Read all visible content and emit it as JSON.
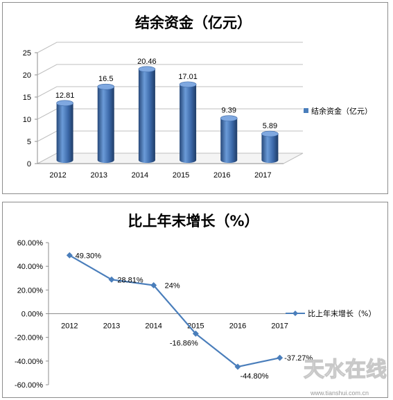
{
  "watermark": {
    "site": "www.tianshui.com.cn",
    "logo_text": "天水在线"
  },
  "chart_data": [
    {
      "type": "bar",
      "title": "结余资金（亿元）",
      "categories": [
        "2012",
        "2013",
        "2014",
        "2015",
        "2016",
        "2017"
      ],
      "series": [
        {
          "name": "结余资金（亿元）",
          "values": [
            12.81,
            16.5,
            20.46,
            17.01,
            9.39,
            5.89
          ]
        }
      ],
      "data_labels": [
        "12.81",
        "16.5",
        "20.46",
        "17.01",
        "9.39",
        "5.89"
      ],
      "y_ticks": [
        "0",
        "5",
        "10",
        "15",
        "20",
        "25"
      ],
      "ylim": [
        0,
        25
      ],
      "grid": true,
      "legend_position": "right",
      "bar_color": "#4a7ebb"
    },
    {
      "type": "line",
      "title": "比上年末增长（%）",
      "categories": [
        "2012",
        "2013",
        "2014",
        "2015",
        "2016",
        "2017"
      ],
      "series": [
        {
          "name": "比上年末增长（%）",
          "values": [
            49.3,
            28.81,
            24,
            -16.86,
            -44.8,
            -37.27
          ]
        }
      ],
      "data_labels": [
        "49.30%",
        "28.81%",
        "24%",
        "-16.86%",
        "-44.80%",
        "-37.27%"
      ],
      "y_ticks": [
        "-60.00%",
        "-40.00%",
        "-20.00%",
        "0.00%",
        "20.00%",
        "40.00%",
        "60.00%"
      ],
      "ylim": [
        -60,
        60
      ],
      "grid": false,
      "legend_position": "right",
      "line_color": "#4a7ebb"
    }
  ]
}
